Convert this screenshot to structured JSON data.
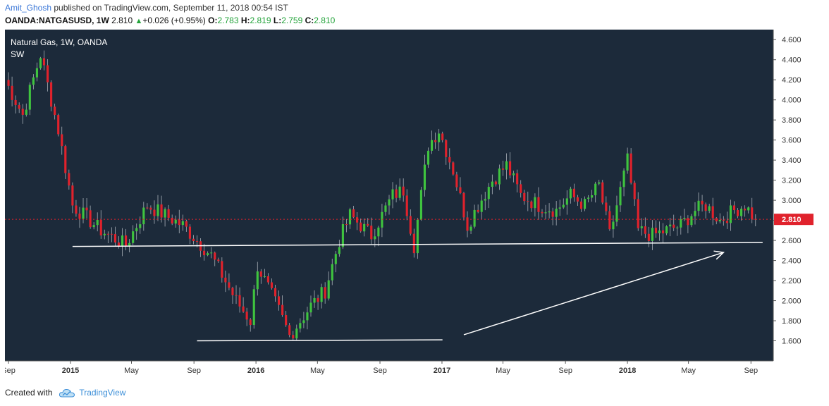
{
  "header": {
    "author": "Amit_Ghosh",
    "published": "published on TradingView.com, September 11, 2018 00:54 IST",
    "symbol": "OANDA:NATGASUSD, 1W",
    "last": "2.810",
    "change": "+0.026 (+0.95%)",
    "o_label": "O:",
    "o_value": "2.783",
    "h_label": "H:",
    "h_value": "2.819",
    "l_label": "L:",
    "l_value": "2.759",
    "c_label": "C:",
    "c_value": "2.810"
  },
  "legend": {
    "title": "Natural Gas, 1W, OANDA",
    "indicator": "SW"
  },
  "footer": {
    "created_with": "Created with",
    "brand": "TradingView"
  },
  "colors": {
    "background": "#1c2a3a",
    "up": "#3fc43f",
    "down": "#e0222c",
    "axis_text": "#333333",
    "price_tag": "#e0222c",
    "annotation": "#ffffff"
  },
  "chart_data": {
    "type": "candlestick",
    "title": "Natural Gas, 1W, OANDA",
    "interval": "1W",
    "x_start": "2014-08-25",
    "x_end": "2018-10-15",
    "ylim": [
      1.4,
      4.7
    ],
    "y_ticks": [
      "1.600",
      "1.800",
      "2.000",
      "2.200",
      "2.400",
      "2.600",
      "2.800",
      "3.000",
      "3.200",
      "3.400",
      "3.600",
      "3.800",
      "4.000",
      "4.200",
      "4.400",
      "4.600"
    ],
    "x_ticks": [
      {
        "label": "Sep",
        "date": "2014-09-01",
        "bold": false
      },
      {
        "label": "2015",
        "date": "2015-01-01",
        "bold": true
      },
      {
        "label": "May",
        "date": "2015-05-01",
        "bold": false
      },
      {
        "label": "Sep",
        "date": "2015-09-01",
        "bold": false
      },
      {
        "label": "2016",
        "date": "2016-01-01",
        "bold": true
      },
      {
        "label": "May",
        "date": "2016-05-01",
        "bold": false
      },
      {
        "label": "Sep",
        "date": "2016-09-01",
        "bold": false
      },
      {
        "label": "2017",
        "date": "2017-01-01",
        "bold": true
      },
      {
        "label": "May",
        "date": "2017-05-01",
        "bold": false
      },
      {
        "label": "Sep",
        "date": "2017-09-01",
        "bold": false
      },
      {
        "label": "2018",
        "date": "2018-01-01",
        "bold": true
      },
      {
        "label": "May",
        "date": "2018-05-01",
        "bold": false
      },
      {
        "label": "Sep",
        "date": "2018-09-01",
        "bold": false
      }
    ],
    "last_price": "2.810",
    "anchors": [
      {
        "date": "2014-08-25",
        "close": 4.2
      },
      {
        "date": "2014-09-29",
        "close": 3.85
      },
      {
        "date": "2014-11-03",
        "close": 4.45
      },
      {
        "date": "2014-12-08",
        "close": 3.7
      },
      {
        "date": "2015-01-05",
        "close": 2.95
      },
      {
        "date": "2015-03-02",
        "close": 2.7
      },
      {
        "date": "2015-04-20",
        "close": 2.55
      },
      {
        "date": "2015-06-01",
        "close": 2.95
      },
      {
        "date": "2015-08-10",
        "close": 2.75
      },
      {
        "date": "2015-10-05",
        "close": 2.45
      },
      {
        "date": "2015-11-23",
        "close": 2.0
      },
      {
        "date": "2015-12-21",
        "close": 1.8
      },
      {
        "date": "2016-01-04",
        "close": 2.35
      },
      {
        "date": "2016-02-15",
        "close": 1.9
      },
      {
        "date": "2016-03-07",
        "close": 1.65
      },
      {
        "date": "2016-04-18",
        "close": 1.95
      },
      {
        "date": "2016-05-16",
        "close": 2.1
      },
      {
        "date": "2016-06-13",
        "close": 2.6
      },
      {
        "date": "2016-07-04",
        "close": 2.85
      },
      {
        "date": "2016-08-15",
        "close": 2.65
      },
      {
        "date": "2016-09-26",
        "close": 3.05
      },
      {
        "date": "2016-10-17",
        "close": 3.1
      },
      {
        "date": "2016-11-07",
        "close": 2.55
      },
      {
        "date": "2016-12-05",
        "close": 3.55
      },
      {
        "date": "2016-12-26",
        "close": 3.7
      },
      {
        "date": "2017-01-23",
        "close": 3.3
      },
      {
        "date": "2017-02-20",
        "close": 2.75
      },
      {
        "date": "2017-03-13",
        "close": 2.95
      },
      {
        "date": "2017-04-10",
        "close": 3.2
      },
      {
        "date": "2017-05-08",
        "close": 3.35
      },
      {
        "date": "2017-06-05",
        "close": 3.05
      },
      {
        "date": "2017-07-10",
        "close": 2.95
      },
      {
        "date": "2017-08-14",
        "close": 2.9
      },
      {
        "date": "2017-09-11",
        "close": 3.05
      },
      {
        "date": "2017-10-09",
        "close": 2.95
      },
      {
        "date": "2017-11-06",
        "close": 3.15
      },
      {
        "date": "2017-11-27",
        "close": 2.65
      },
      {
        "date": "2017-12-18",
        "close": 3.1
      },
      {
        "date": "2018-01-01",
        "close": 3.4
      },
      {
        "date": "2018-01-22",
        "close": 2.7
      },
      {
        "date": "2018-02-19",
        "close": 2.65
      },
      {
        "date": "2018-03-19",
        "close": 2.7
      },
      {
        "date": "2018-04-16",
        "close": 2.75
      },
      {
        "date": "2018-05-14",
        "close": 2.9
      },
      {
        "date": "2018-06-04",
        "close": 2.95
      },
      {
        "date": "2018-07-02",
        "close": 2.8
      },
      {
        "date": "2018-07-30",
        "close": 2.9
      },
      {
        "date": "2018-08-20",
        "close": 2.95
      },
      {
        "date": "2018-09-10",
        "close": 2.81
      }
    ],
    "annotations": [
      {
        "type": "line",
        "from": {
          "date": "2015-01-05",
          "price": 2.54
        },
        "to": {
          "date": "2018-09-24",
          "price": 2.58
        }
      },
      {
        "type": "line",
        "from": {
          "date": "2015-09-07",
          "price": 1.6
        },
        "to": {
          "date": "2017-01-02",
          "price": 1.61
        }
      },
      {
        "type": "arrow",
        "from": {
          "date": "2017-02-13",
          "price": 1.66
        },
        "to": {
          "date": "2018-07-09",
          "price": 2.48
        }
      },
      {
        "type": "hline",
        "price": 2.81
      }
    ]
  }
}
